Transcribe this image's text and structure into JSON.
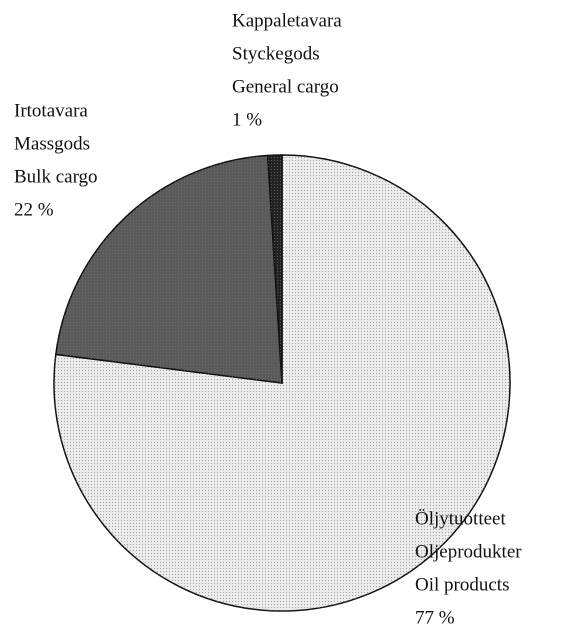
{
  "chart_data": {
    "type": "pie",
    "categories": [
      [
        "Öljytuotteet",
        "Oljeprodukter",
        "Oil products"
      ],
      [
        "Irtotavara",
        "Massgods",
        "Bulk cargo"
      ],
      [
        "Kappaletavara",
        "Styckegods",
        "General cargo"
      ]
    ],
    "values": [
      77,
      22,
      1
    ],
    "value_labels": [
      "77 %",
      "22 %",
      "1 %"
    ],
    "colors": [
      "#ececec",
      "#5a5a5a",
      "#222222"
    ]
  }
}
